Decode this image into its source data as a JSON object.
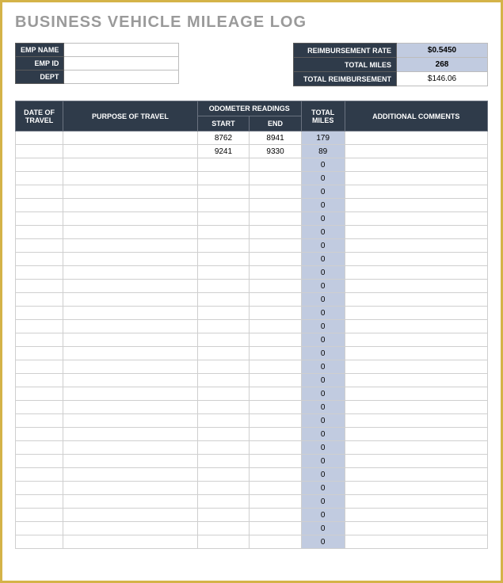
{
  "title": "BUSINESS VEHICLE MILEAGE LOG",
  "employee": {
    "name_label": "EMP NAME",
    "name_value": "",
    "id_label": "EMP ID",
    "id_value": "",
    "dept_label": "DEPT",
    "dept_value": ""
  },
  "summary": {
    "rate_label": "REIMBURSEMENT RATE",
    "rate_value": "$0.5450",
    "miles_label": "TOTAL MILES",
    "miles_value": "268",
    "total_label": "TOTAL REIMBURSEMENT",
    "total_value": "$146.06"
  },
  "headers": {
    "date": "DATE OF TRAVEL",
    "purpose": "PURPOSE OF TRAVEL",
    "odometer": "ODOMETER READINGS",
    "start": "START",
    "end": "END",
    "miles": "TOTAL MILES",
    "comments": "ADDITIONAL COMMENTS"
  },
  "rows": [
    {
      "date": "",
      "purpose": "",
      "start": "8762",
      "end": "8941",
      "miles": "179",
      "comments": ""
    },
    {
      "date": "",
      "purpose": "",
      "start": "9241",
      "end": "9330",
      "miles": "89",
      "comments": ""
    },
    {
      "date": "",
      "purpose": "",
      "start": "",
      "end": "",
      "miles": "0",
      "comments": ""
    },
    {
      "date": "",
      "purpose": "",
      "start": "",
      "end": "",
      "miles": "0",
      "comments": ""
    },
    {
      "date": "",
      "purpose": "",
      "start": "",
      "end": "",
      "miles": "0",
      "comments": ""
    },
    {
      "date": "",
      "purpose": "",
      "start": "",
      "end": "",
      "miles": "0",
      "comments": ""
    },
    {
      "date": "",
      "purpose": "",
      "start": "",
      "end": "",
      "miles": "0",
      "comments": ""
    },
    {
      "date": "",
      "purpose": "",
      "start": "",
      "end": "",
      "miles": "0",
      "comments": ""
    },
    {
      "date": "",
      "purpose": "",
      "start": "",
      "end": "",
      "miles": "0",
      "comments": ""
    },
    {
      "date": "",
      "purpose": "",
      "start": "",
      "end": "",
      "miles": "0",
      "comments": ""
    },
    {
      "date": "",
      "purpose": "",
      "start": "",
      "end": "",
      "miles": "0",
      "comments": ""
    },
    {
      "date": "",
      "purpose": "",
      "start": "",
      "end": "",
      "miles": "0",
      "comments": ""
    },
    {
      "date": "",
      "purpose": "",
      "start": "",
      "end": "",
      "miles": "0",
      "comments": ""
    },
    {
      "date": "",
      "purpose": "",
      "start": "",
      "end": "",
      "miles": "0",
      "comments": ""
    },
    {
      "date": "",
      "purpose": "",
      "start": "",
      "end": "",
      "miles": "0",
      "comments": ""
    },
    {
      "date": "",
      "purpose": "",
      "start": "",
      "end": "",
      "miles": "0",
      "comments": ""
    },
    {
      "date": "",
      "purpose": "",
      "start": "",
      "end": "",
      "miles": "0",
      "comments": ""
    },
    {
      "date": "",
      "purpose": "",
      "start": "",
      "end": "",
      "miles": "0",
      "comments": ""
    },
    {
      "date": "",
      "purpose": "",
      "start": "",
      "end": "",
      "miles": "0",
      "comments": ""
    },
    {
      "date": "",
      "purpose": "",
      "start": "",
      "end": "",
      "miles": "0",
      "comments": ""
    },
    {
      "date": "",
      "purpose": "",
      "start": "",
      "end": "",
      "miles": "0",
      "comments": ""
    },
    {
      "date": "",
      "purpose": "",
      "start": "",
      "end": "",
      "miles": "0",
      "comments": ""
    },
    {
      "date": "",
      "purpose": "",
      "start": "",
      "end": "",
      "miles": "0",
      "comments": ""
    },
    {
      "date": "",
      "purpose": "",
      "start": "",
      "end": "",
      "miles": "0",
      "comments": ""
    },
    {
      "date": "",
      "purpose": "",
      "start": "",
      "end": "",
      "miles": "0",
      "comments": ""
    },
    {
      "date": "",
      "purpose": "",
      "start": "",
      "end": "",
      "miles": "0",
      "comments": ""
    },
    {
      "date": "",
      "purpose": "",
      "start": "",
      "end": "",
      "miles": "0",
      "comments": ""
    },
    {
      "date": "",
      "purpose": "",
      "start": "",
      "end": "",
      "miles": "0",
      "comments": ""
    },
    {
      "date": "",
      "purpose": "",
      "start": "",
      "end": "",
      "miles": "0",
      "comments": ""
    },
    {
      "date": "",
      "purpose": "",
      "start": "",
      "end": "",
      "miles": "0",
      "comments": ""
    },
    {
      "date": "",
      "purpose": "",
      "start": "",
      "end": "",
      "miles": "0",
      "comments": ""
    }
  ],
  "colors": {
    "header_bg": "#2f3b4a",
    "header_fg": "#ffffff",
    "accent_bg": "#c1cbe0",
    "border": "#cfcfcf",
    "page_border": "#d4b348",
    "title_color": "#9a9a9a"
  }
}
